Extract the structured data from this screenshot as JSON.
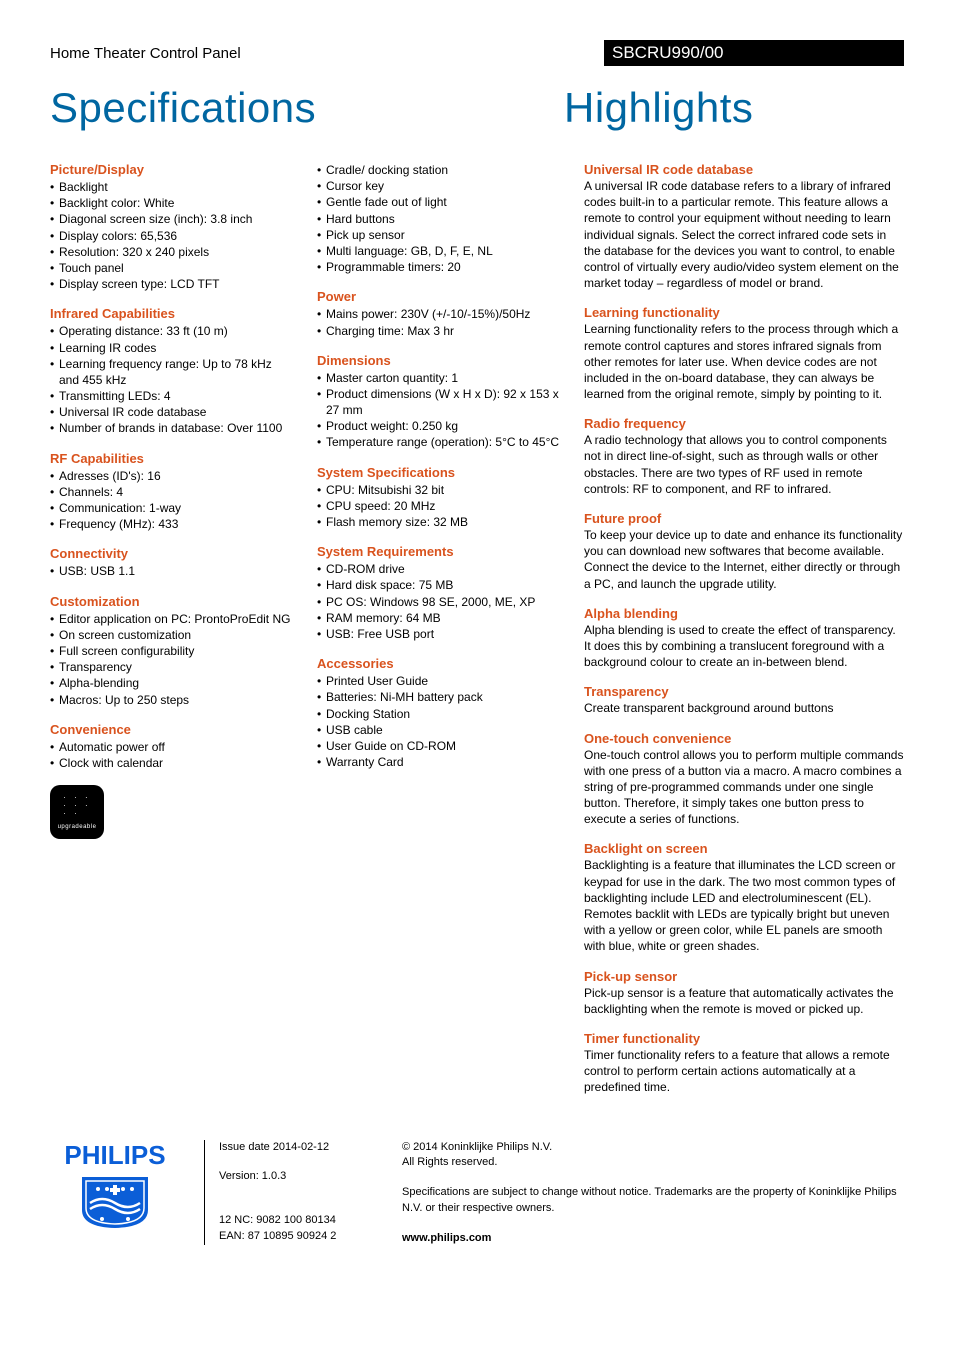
{
  "header": {
    "category": "Home Theater Control Panel",
    "model": "SBCRU990/00",
    "title_left": "Specifications",
    "title_right": "Highlights"
  },
  "specs_col1": [
    {
      "heading": "Picture/Display",
      "items": [
        "Backlight",
        "Backlight color: White",
        "Diagonal screen size (inch): 3.8 inch",
        "Display colors: 65,536",
        "Resolution: 320 x 240 pixels",
        "Touch panel",
        "Display screen type: LCD TFT"
      ]
    },
    {
      "heading": "Infrared Capabilities",
      "items": [
        "Operating distance: 33 ft (10 m)",
        "Learning IR codes",
        "Learning frequency range: Up to 78 kHz and 455 kHz",
        "Transmitting LEDs: 4",
        "Universal IR code database",
        "Number of brands in database: Over 1100"
      ]
    },
    {
      "heading": "RF Capabilities",
      "items": [
        "Adresses (ID's): 16",
        "Channels: 4",
        "Communication: 1-way",
        "Frequency (MHz): 433"
      ]
    },
    {
      "heading": "Connectivity",
      "items": [
        "USB: USB 1.1"
      ]
    },
    {
      "heading": "Customization",
      "items": [
        "Editor application on PC: ProntoProEdit NG",
        "On screen customization",
        "Full screen configurability",
        "Transparency",
        "Alpha-blending",
        "Macros: Up to 250 steps"
      ]
    },
    {
      "heading": "Convenience",
      "items": [
        "Automatic power off",
        "Clock with calendar"
      ]
    }
  ],
  "specs_col2": [
    {
      "heading": "",
      "items": [
        "Cradle/ docking station",
        "Cursor key",
        "Gentle fade out of light",
        "Hard buttons",
        "Pick up sensor",
        "Multi language: GB, D, F, E, NL",
        "Programmable timers: 20"
      ]
    },
    {
      "heading": "Power",
      "items": [
        "Mains power: 230V (+/-10/-15%)/50Hz",
        "Charging time: Max 3 hr"
      ]
    },
    {
      "heading": "Dimensions",
      "items": [
        "Master carton quantity: 1",
        "Product dimensions (W x H x D): 92 x 153 x 27 mm",
        "Product weight: 0.250 kg",
        "Temperature range (operation): 5°C to 45°C"
      ]
    },
    {
      "heading": "System Specifications",
      "items": [
        "CPU: Mitsubishi 32 bit",
        "CPU speed: 20 MHz",
        "Flash memory size: 32 MB"
      ]
    },
    {
      "heading": "System Requirements",
      "items": [
        "CD-ROM drive",
        "Hard disk space: 75 MB",
        "PC OS: Windows 98 SE, 2000, ME, XP",
        "RAM memory: 64 MB",
        "USB: Free USB port"
      ]
    },
    {
      "heading": "Accessories",
      "items": [
        "Printed User Guide",
        "Batteries: Ni-MH battery pack",
        "Docking Station",
        "USB cable",
        "User Guide on CD-ROM",
        "Warranty Card"
      ]
    }
  ],
  "highlights": [
    {
      "heading": "Universal IR code database",
      "body": "A universal IR code database refers to a library of infrared codes built-in to a particular remote. This feature allows a remote to control your equipment without needing to learn individual signals. Select the correct infrared code sets in the database for the devices you want to control, to enable control of virtually every audio/video system element on the market today – regardless of model or brand."
    },
    {
      "heading": "Learning functionality",
      "body": "Learning functionality refers to the process through which a remote control captures and stores infrared signals from other remotes for later use. When device codes are not included in the on-board database, they can always be learned from the original remote, simply by pointing to it."
    },
    {
      "heading": "Radio frequency",
      "body": "A radio technology that allows you to control components not in direct line-of-sight, such as through walls or other obstacles. There are two types of RF used in remote controls: RF to component, and RF to infrared."
    },
    {
      "heading": "Future proof",
      "body": "To keep your device up to date and enhance its functionality you can download new softwares that become available. Connect the device to the Internet, either directly or through a PC, and launch the upgrade utility."
    },
    {
      "heading": "Alpha blending",
      "body": "Alpha blending is used to create the effect of transparency. It does this by combining a translucent foreground with a background colour to create an in-between blend."
    },
    {
      "heading": "Transparency",
      "body": "Create transparent background around buttons"
    },
    {
      "heading": "One-touch convenience",
      "body": "One-touch control allows you to perform multiple commands with one press of a button via a macro. A macro combines a string of pre-programmed commands under one single button. Therefore, it simply takes one button press to execute a series of functions."
    },
    {
      "heading": "Backlight on screen",
      "body": "Backlighting is a feature that illuminates the LCD screen or keypad for use in the dark. The two most common types of backlighting include LED and electroluminescent (EL). Remotes backlit with LEDs are typically bright but uneven with a yellow or green color, while EL panels are smooth with blue, white or green shades."
    },
    {
      "heading": "Pick-up sensor",
      "body": "Pick-up sensor is a feature that automatically activates the backlighting when the remote is moved or picked up."
    },
    {
      "heading": "Timer functionality",
      "body": "Timer functionality refers to a feature that allows a remote control to perform certain actions automatically at a predefined time."
    }
  ],
  "badge": {
    "label": "upgradeable"
  },
  "footer": {
    "issue_date": "Issue date 2014-02-12",
    "version": "Version: 1.0.3",
    "nc": "12 NC: 9082 100 80134",
    "ean": "EAN: 87 10895 90924 2",
    "copyright": "© 2014 Koninklijke Philips N.V.",
    "rights": "All Rights reserved.",
    "disclaimer": "Specifications are subject to change without notice. Trademarks are the property of Koninklijke Philips N.V. or their respective owners.",
    "url": "www.philips.com",
    "logo_text": "PHILIPS"
  }
}
